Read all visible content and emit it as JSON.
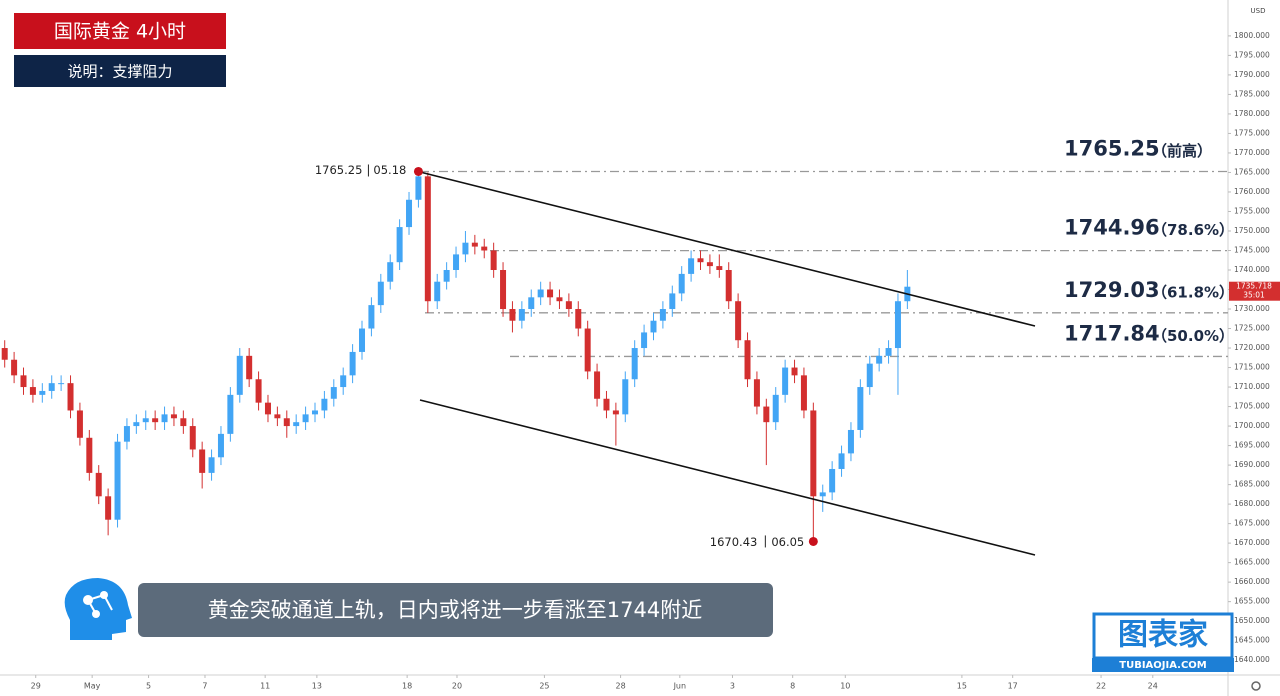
{
  "chart_data": {
    "type": "candlestick",
    "title": "国际黄金  4小时",
    "subtitle": "说明：支撑阻力",
    "currency": "USD",
    "caption": "黄金突破通道上轨，日内或将进一步看涨至1744附近",
    "brand": "图表家",
    "brand_url": "TUBIAOJIA.COM",
    "up_color": "#42a5f5",
    "down_color": "#d32f2f",
    "open": [
      1720,
      1717,
      1713,
      1710,
      1708,
      1709,
      1711,
      1711,
      1704,
      1697,
      1688,
      1682,
      1676,
      1696,
      1700,
      1701,
      1702,
      1701,
      1703,
      1702,
      1700,
      1694,
      1688,
      1692,
      1698,
      1708,
      1718,
      1712,
      1706,
      1703,
      1702,
      1700,
      1701,
      1703,
      1704,
      1707,
      1710,
      1713,
      1719,
      1725,
      1731,
      1737,
      1742,
      1751,
      1758,
      1764,
      1732,
      1737,
      1740,
      1744,
      1747,
      1746,
      1745,
      1740,
      1730,
      1727,
      1730,
      1733,
      1735,
      1733,
      1732,
      1730,
      1725,
      1714,
      1707,
      1704,
      1703,
      1712,
      1720,
      1724,
      1727,
      1730,
      1734,
      1739,
      1743,
      1742,
      1741,
      1740,
      1732,
      1722,
      1712,
      1705,
      1701,
      1708,
      1715,
      1713,
      1704,
      1682,
      1683,
      1689,
      1693,
      1699,
      1710,
      1716,
      1718,
      1720,
      1732
    ],
    "high": [
      1722,
      1719,
      1715,
      1712,
      1711,
      1713,
      1713,
      1713,
      1706,
      1699,
      1690,
      1684,
      1698,
      1702,
      1703,
      1704,
      1704,
      1705,
      1705,
      1704,
      1702,
      1696,
      1694,
      1700,
      1710,
      1720,
      1720,
      1714,
      1708,
      1705,
      1704,
      1703,
      1705,
      1706,
      1709,
      1712,
      1715,
      1721,
      1727,
      1733,
      1739,
      1744,
      1753,
      1760,
      1765.25,
      1765,
      1739,
      1742,
      1746,
      1750,
      1749,
      1748,
      1747,
      1742,
      1732,
      1732,
      1735,
      1737,
      1737,
      1735,
      1734,
      1732,
      1727,
      1716,
      1709,
      1706,
      1714,
      1722,
      1726,
      1729,
      1732,
      1736,
      1741,
      1745,
      1745,
      1744,
      1744,
      1742,
      1734,
      1724,
      1714,
      1707,
      1710,
      1717,
      1717,
      1715,
      1706,
      1685,
      1691,
      1695,
      1701,
      1712,
      1718,
      1720,
      1722,
      1734,
      1740
    ],
    "low": [
      1715,
      1711,
      1708,
      1706,
      1706,
      1707,
      1709,
      1702,
      1695,
      1686,
      1680,
      1672,
      1674,
      1694,
      1698,
      1699,
      1699,
      1699,
      1700,
      1698,
      1692,
      1684,
      1686,
      1690,
      1696,
      1706,
      1710,
      1704,
      1701,
      1700,
      1697,
      1698,
      1699,
      1701,
      1702,
      1705,
      1708,
      1711,
      1717,
      1723,
      1729,
      1735,
      1740,
      1749,
      1756,
      1729,
      1730,
      1735,
      1738,
      1742,
      1744,
      1743,
      1738,
      1728,
      1724,
      1725,
      1728,
      1731,
      1731,
      1730,
      1728,
      1723,
      1712,
      1705,
      1702,
      1695,
      1701,
      1710,
      1718,
      1722,
      1725,
      1728,
      1732,
      1737,
      1740,
      1739,
      1738,
      1730,
      1720,
      1710,
      1703,
      1690,
      1699,
      1706,
      1711,
      1702,
      1670.43,
      1678,
      1681,
      1687,
      1691,
      1697,
      1708,
      1714,
      1716,
      1708,
      1730
    ],
    "close": [
      1717,
      1713,
      1710,
      1708,
      1709,
      1711,
      1711,
      1704,
      1697,
      1688,
      1682,
      1676,
      1696,
      1700,
      1701,
      1702,
      1701,
      1703,
      1702,
      1700,
      1694,
      1688,
      1692,
      1698,
      1708,
      1718,
      1712,
      1706,
      1703,
      1702,
      1700,
      1701,
      1703,
      1704,
      1707,
      1710,
      1713,
      1719,
      1725,
      1731,
      1737,
      1742,
      1751,
      1758,
      1764,
      1732,
      1737,
      1740,
      1744,
      1747,
      1746,
      1745,
      1740,
      1730,
      1727,
      1730,
      1733,
      1735,
      1733,
      1732,
      1730,
      1725,
      1714,
      1707,
      1704,
      1703,
      1712,
      1720,
      1724,
      1727,
      1730,
      1734,
      1739,
      1743,
      1742,
      1741,
      1740,
      1732,
      1722,
      1712,
      1705,
      1701,
      1708,
      1715,
      1713,
      1704,
      1682,
      1683,
      1689,
      1693,
      1699,
      1710,
      1716,
      1718,
      1720,
      1732,
      1735.72
    ],
    "xlim": [
      -0.5,
      130.1
    ],
    "xticks": [
      {
        "value": 3.3,
        "label": "29"
      },
      {
        "value": 9.3,
        "label": "May"
      },
      {
        "value": 15.3,
        "label": "5"
      },
      {
        "value": 21.3,
        "label": "7"
      },
      {
        "value": 27.7,
        "label": "11"
      },
      {
        "value": 33.2,
        "label": "13"
      },
      {
        "value": 42.8,
        "label": "18"
      },
      {
        "value": 48.1,
        "label": "20"
      },
      {
        "value": 57.4,
        "label": "25"
      },
      {
        "value": 65.5,
        "label": "28"
      },
      {
        "value": 71.8,
        "label": "Jun"
      },
      {
        "value": 77.4,
        "label": "3"
      },
      {
        "value": 83.8,
        "label": "8"
      },
      {
        "value": 89.4,
        "label": "10"
      },
      {
        "value": 101.8,
        "label": "15"
      },
      {
        "value": 107.2,
        "label": "17"
      },
      {
        "value": 116.6,
        "label": "22"
      },
      {
        "value": 122.1,
        "label": "24"
      }
    ],
    "ylim": [
      1636.2,
      1809.2
    ],
    "yticks": [
      {
        "value": 1640,
        "label": "1640.000"
      },
      {
        "value": 1645,
        "label": "1645.000"
      },
      {
        "value": 1650,
        "label": "1650.000"
      },
      {
        "value": 1655,
        "label": "1655.000"
      },
      {
        "value": 1660,
        "label": "1660.000"
      },
      {
        "value": 1665,
        "label": "1665.000"
      },
      {
        "value": 1670,
        "label": "1670.000"
      },
      {
        "value": 1675,
        "label": "1675.000"
      },
      {
        "value": 1680,
        "label": "1680.000"
      },
      {
        "value": 1685,
        "label": "1685.000"
      },
      {
        "value": 1690,
        "label": "1690.000"
      },
      {
        "value": 1695,
        "label": "1695.000"
      },
      {
        "value": 1700,
        "label": "1700.000"
      },
      {
        "value": 1705,
        "label": "1705.000"
      },
      {
        "value": 1710,
        "label": "1710.000"
      },
      {
        "value": 1715,
        "label": "1715.000"
      },
      {
        "value": 1720,
        "label": "1720.000"
      },
      {
        "value": 1725,
        "label": "1725.000"
      },
      {
        "value": 1730,
        "label": "1730.000"
      },
      {
        "value": 1735,
        "label": "1735.000"
      },
      {
        "value": 1740,
        "label": "1740.000"
      },
      {
        "value": 1745,
        "label": "1745.000"
      },
      {
        "value": 1750,
        "label": "1750.000"
      },
      {
        "value": 1755,
        "label": "1755.000"
      },
      {
        "value": 1760,
        "label": "1760.000"
      },
      {
        "value": 1765,
        "label": "1765.000"
      },
      {
        "value": 1770,
        "label": "1770.000"
      },
      {
        "value": 1775,
        "label": "1775.000"
      },
      {
        "value": 1780,
        "label": "1780.000"
      },
      {
        "value": 1785,
        "label": "1785.000"
      },
      {
        "value": 1790,
        "label": "1790.000"
      },
      {
        "value": 1795,
        "label": "1795.000"
      },
      {
        "value": 1800,
        "label": "1800.000"
      }
    ],
    "levels": [
      {
        "value": 1765.25,
        "note": "（前高）"
      },
      {
        "value": 1744.96,
        "note": "（78.6%）"
      },
      {
        "value": 1729.03,
        "note": "（61.8%）"
      },
      {
        "value": 1717.84,
        "note": "（50.0%）"
      }
    ],
    "peak": {
      "value": 1765.25,
      "date": "05.18"
    },
    "trough": {
      "value": 1670.43,
      "date": "06.05"
    },
    "last_price": {
      "value": 1735.718,
      "label": "1735.718",
      "countdown": "35:01"
    }
  }
}
